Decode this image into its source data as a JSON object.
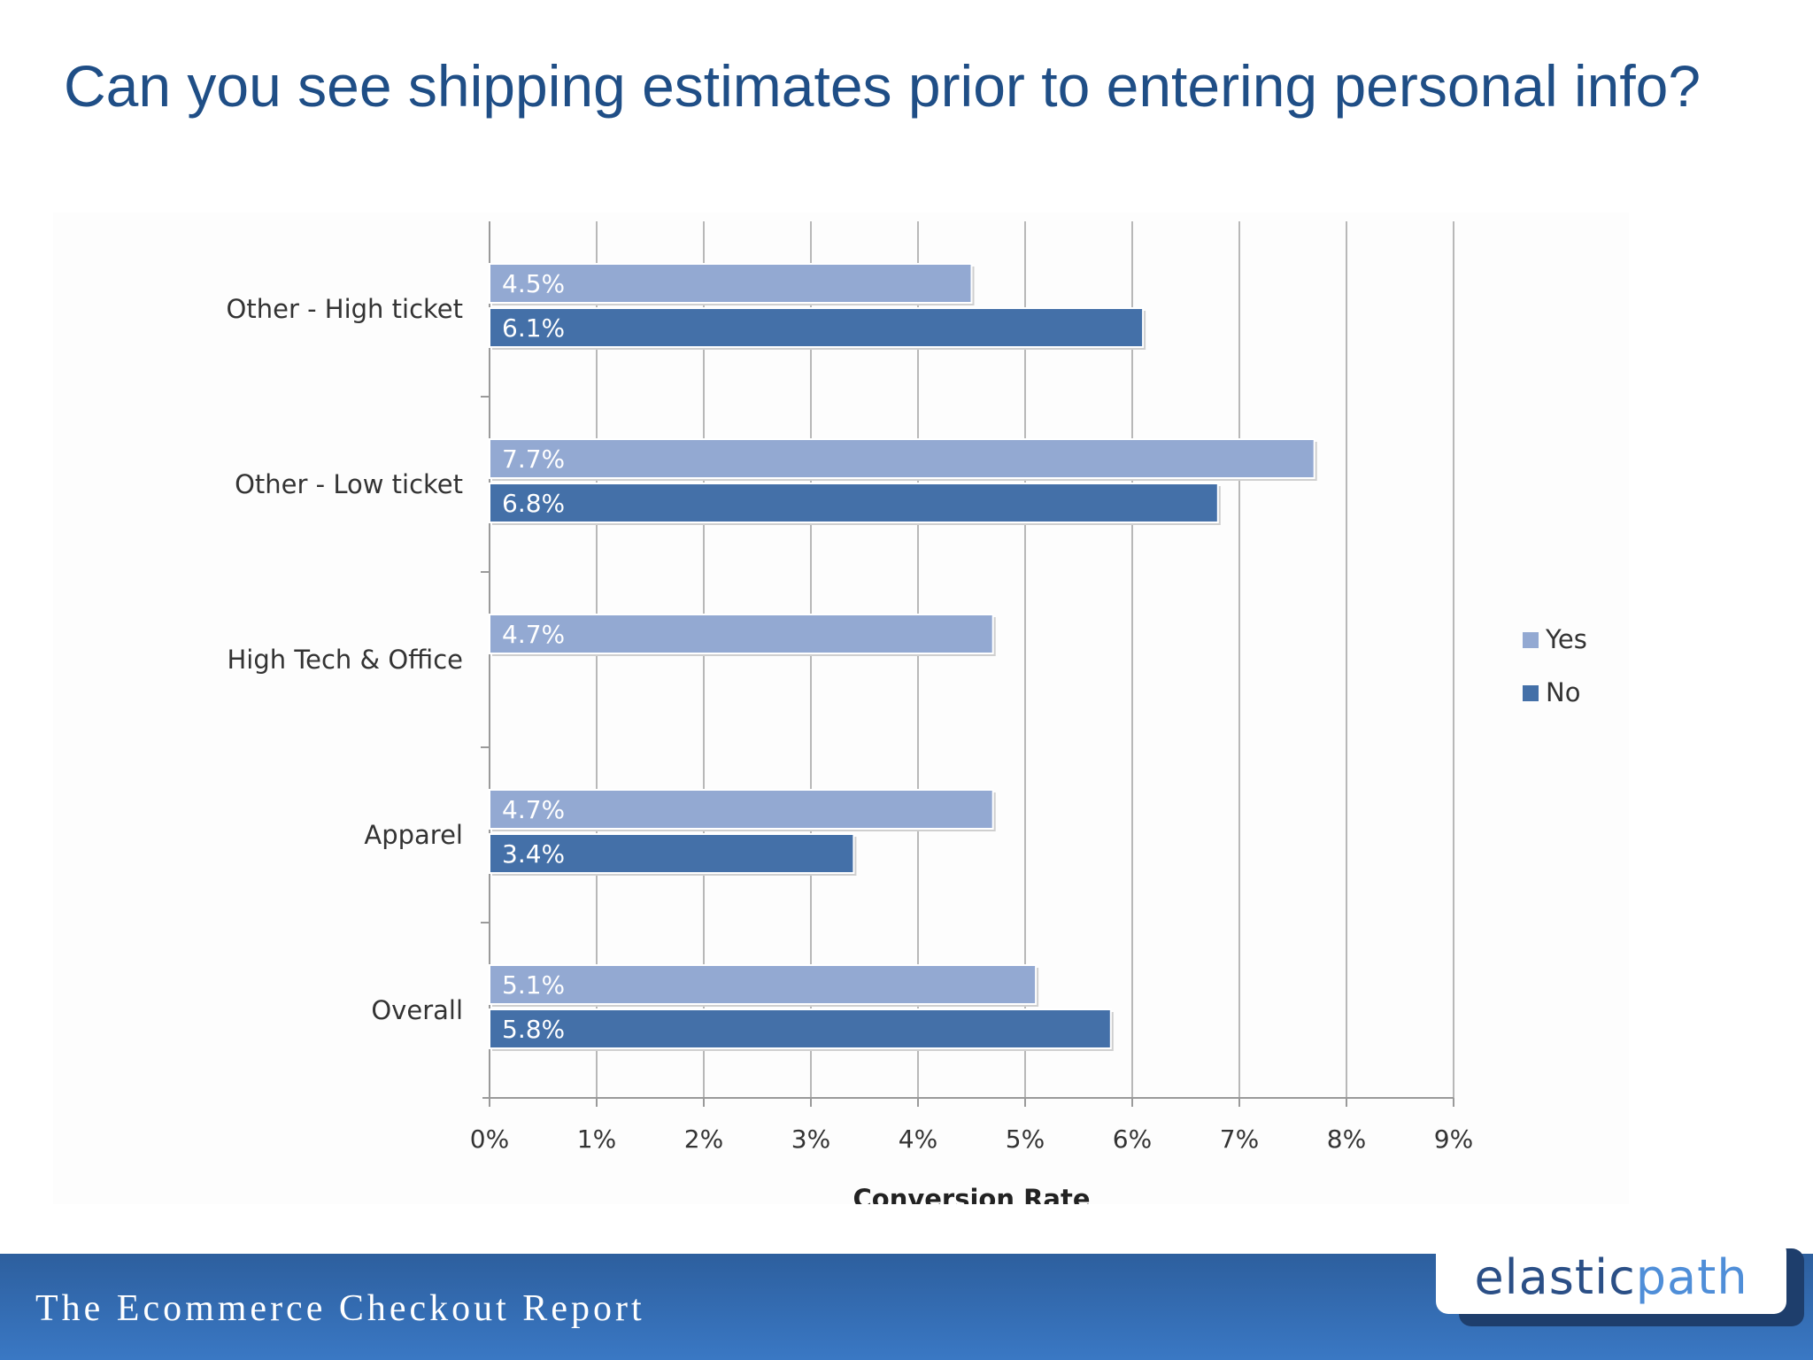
{
  "slide": {
    "title": "Can you see shipping estimates prior to entering personal info?",
    "footer_text": "The Ecommerce Checkout Report",
    "logo": {
      "part1": "elastic",
      "part2": "path"
    }
  },
  "colors": {
    "title": "#1f4e86",
    "yes_bar": "#93a9d2",
    "no_bar": "#4470a8",
    "gridline": "#b8b8b8",
    "footer": "#3a78c4"
  },
  "chart_data": {
    "type": "bar",
    "orientation": "horizontal",
    "title": "",
    "xlabel": "Conversion Rate",
    "ylabel": "",
    "xlim": [
      0,
      9
    ],
    "x_ticks": [
      0,
      1,
      2,
      3,
      4,
      5,
      6,
      7,
      8,
      9
    ],
    "x_tick_labels": [
      "0%",
      "1%",
      "2%",
      "3%",
      "4%",
      "5%",
      "6%",
      "7%",
      "8%",
      "9%"
    ],
    "grid": true,
    "legend_position": "right",
    "categories": [
      "Other - High ticket",
      "Other - Low ticket",
      "High Tech & Office",
      "Apparel",
      "Overall"
    ],
    "series": [
      {
        "name": "Yes",
        "color": "#93a9d2",
        "values": [
          4.5,
          7.7,
          4.7,
          4.7,
          5.1
        ],
        "labels": [
          "4.5%",
          "7.7%",
          "4.7%",
          "4.7%",
          "5.1%"
        ]
      },
      {
        "name": "No",
        "color": "#4470a8",
        "values": [
          6.1,
          6.8,
          null,
          3.4,
          5.8
        ],
        "labels": [
          "6.1%",
          "6.8%",
          "",
          "3.4%",
          "5.8%"
        ]
      }
    ]
  }
}
